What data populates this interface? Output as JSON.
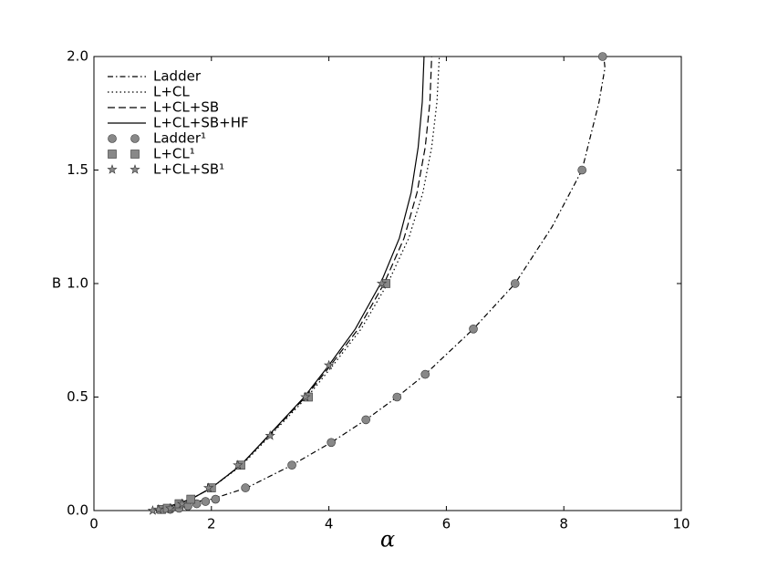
{
  "chart_data": {
    "type": "line",
    "x_label": "α",
    "y_label": "B",
    "xlim": [
      0,
      10
    ],
    "ylim": [
      0,
      2.0
    ],
    "xticks": [
      0,
      2,
      4,
      6,
      8,
      10
    ],
    "yticks": [
      {
        "value": 0,
        "label": "0.0"
      },
      {
        "value": 0.5,
        "label": "0.5"
      },
      {
        "value": 1.0,
        "label": "1.0"
      },
      {
        "value": 1.5,
        "label": "1.5"
      },
      {
        "value": 2.0,
        "label": "2.0"
      }
    ],
    "legend": "upper left",
    "series": [
      {
        "name": "Ladder",
        "color": "#000000",
        "dash": "6,3,1.5,3",
        "marker": "none",
        "x": [
          0.95,
          1.2,
          1.5,
          2.0,
          2.6,
          3.37,
          4.04,
          4.63,
          5.16,
          5.64,
          6.46,
          7.17,
          7.8,
          8.31,
          8.6,
          8.7,
          8.68
        ],
        "values": [
          0,
          0.01,
          0.03,
          0.05,
          0.1,
          0.2,
          0.3,
          0.4,
          0.5,
          0.6,
          0.8,
          1.0,
          1.25,
          1.5,
          1.8,
          1.95,
          2.0
        ]
      },
      {
        "name": "L+CL",
        "color": "#000000",
        "dash": "1.5,3",
        "marker": "none",
        "x": [
          0.95,
          1.3,
          1.65,
          2.0,
          2.52,
          3.0,
          3.63,
          4.07,
          4.55,
          5.0,
          5.36,
          5.6,
          5.75,
          5.84,
          5.88
        ],
        "values": [
          0,
          0.02,
          0.05,
          0.1,
          0.2,
          0.33,
          0.5,
          0.64,
          0.8,
          1.0,
          1.2,
          1.4,
          1.6,
          1.8,
          2.0
        ]
      },
      {
        "name": "L+CL+SB",
        "color": "#000000",
        "dash": "8,4",
        "marker": "none",
        "x": [
          0.95,
          1.3,
          1.65,
          2.0,
          2.5,
          2.98,
          3.6,
          4.03,
          4.5,
          4.94,
          5.28,
          5.5,
          5.64,
          5.72,
          5.75
        ],
        "values": [
          0,
          0.02,
          0.05,
          0.1,
          0.2,
          0.33,
          0.5,
          0.64,
          0.8,
          1.0,
          1.2,
          1.4,
          1.6,
          1.8,
          2.0
        ]
      },
      {
        "name": "L+CL+SB+HF",
        "color": "#000000",
        "dash": "none",
        "marker": "none",
        "x": [
          0.95,
          1.3,
          1.65,
          2.0,
          2.5,
          2.97,
          3.58,
          4.0,
          4.45,
          4.88,
          5.2,
          5.4,
          5.52,
          5.59,
          5.62
        ],
        "values": [
          0,
          0.02,
          0.05,
          0.1,
          0.2,
          0.33,
          0.5,
          0.64,
          0.8,
          1.0,
          1.2,
          1.4,
          1.6,
          1.8,
          2.0
        ]
      },
      {
        "name": "Ladder¹",
        "color": "#888888",
        "dash": "none",
        "marker": "circle",
        "x": [
          1.3,
          1.45,
          1.6,
          1.75,
          1.9,
          2.07,
          2.58,
          3.37,
          4.04,
          4.63,
          5.16,
          5.64,
          6.46,
          7.17,
          8.31,
          8.66
        ],
        "values": [
          0.005,
          0.01,
          0.02,
          0.03,
          0.04,
          0.05,
          0.1,
          0.2,
          0.3,
          0.4,
          0.5,
          0.6,
          0.8,
          1.0,
          1.5,
          2.0
        ]
      },
      {
        "name": "L+CL¹",
        "color": "#888888",
        "dash": "none",
        "marker": "square",
        "x": [
          1.15,
          1.25,
          1.45,
          1.65,
          2.0,
          2.5,
          3.65,
          4.97
        ],
        "values": [
          0.005,
          0.01,
          0.03,
          0.05,
          0.1,
          0.2,
          0.5,
          1.0
        ]
      },
      {
        "name": "L+CL+SB¹",
        "color": "#888888",
        "dash": "none",
        "marker": "star",
        "x": [
          1.0,
          1.1,
          1.3,
          1.5,
          1.95,
          2.45,
          3.0,
          3.6,
          4.0,
          4.9
        ],
        "values": [
          0,
          0.005,
          0.01,
          0.03,
          0.1,
          0.2,
          0.33,
          0.5,
          0.64,
          1.0
        ]
      }
    ]
  }
}
